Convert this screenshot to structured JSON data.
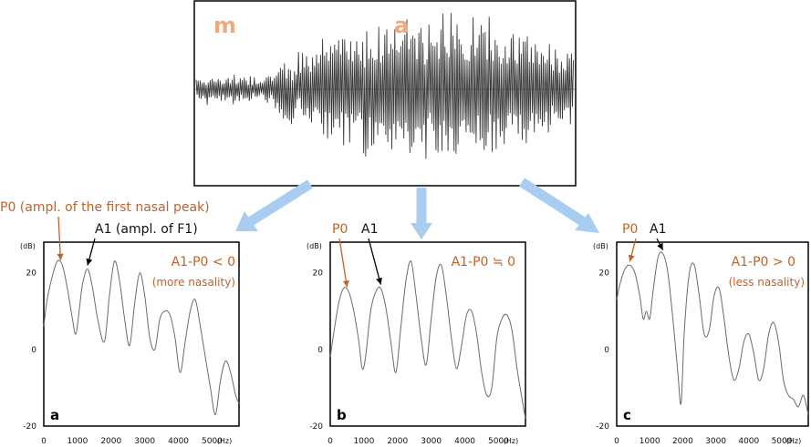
{
  "colors": {
    "accent": "#c0622b",
    "arrow_blue": "#a9cdf0",
    "trace": "#6b6b6b",
    "wave": "#3a3a3a"
  },
  "waveform": {
    "labels": [
      "m",
      "a"
    ]
  },
  "chart_data": [
    {
      "type": "line",
      "panel_label": "a",
      "ylabel": "(dB)",
      "xlabel": "(Hz)",
      "xlim": [
        0,
        5800
      ],
      "ylim": [
        -20,
        28
      ],
      "x_ticks": [
        0,
        1000,
        2000,
        3000,
        4000,
        5000
      ],
      "y_ticks": [
        20,
        0,
        -20
      ],
      "annotations": {
        "p0": "P0 (ampl. of the first nasal peak)",
        "a1": "A1 (ampl. of F1)",
        "relation": "A1-P0 < 0",
        "note": "(more nasality)"
      },
      "series": [
        {
          "x": [
            0,
            100,
            250,
            400,
            550,
            700,
            850,
            950,
            1050,
            1150,
            1300,
            1450,
            1600,
            1800,
            1950,
            2100,
            2250,
            2400,
            2550,
            2700,
            2850,
            3000,
            3150,
            3300,
            3450,
            3600,
            3750,
            3900,
            4050,
            4200,
            4350,
            4500,
            4650,
            4800,
            4950,
            5100,
            5250,
            5400,
            5550,
            5700,
            5800
          ],
          "y": [
            6,
            13,
            19,
            23,
            22,
            16,
            8,
            4,
            10,
            17,
            21,
            16,
            8,
            2,
            14,
            23,
            18,
            8,
            1,
            12,
            20,
            14,
            3,
            0,
            8,
            10,
            9,
            3,
            -6,
            2,
            10,
            13,
            6,
            -2,
            -10,
            -17,
            -8,
            -3,
            -6,
            -12,
            -14
          ]
        }
      ]
    },
    {
      "type": "line",
      "panel_label": "b",
      "ylabel": "(dB)",
      "xlabel": "(Hz)",
      "xlim": [
        0,
        5800
      ],
      "ylim": [
        -20,
        28
      ],
      "x_ticks": [
        0,
        1000,
        2000,
        3000,
        4000,
        5000
      ],
      "y_ticks": [
        20,
        0,
        -20
      ],
      "annotations": {
        "p0": "P0",
        "a1": "A1",
        "relation": "A1-P0 ≒ 0",
        "note": ""
      },
      "series": [
        {
          "x": [
            0,
            100,
            250,
            400,
            550,
            700,
            850,
            950,
            1050,
            1200,
            1350,
            1500,
            1650,
            1800,
            1950,
            2100,
            2250,
            2400,
            2550,
            2700,
            2850,
            3000,
            3150,
            3300,
            3450,
            3600,
            3750,
            3900,
            4050,
            4200,
            4350,
            4500,
            4650,
            4800,
            4950,
            5100,
            5250,
            5400,
            5550,
            5700,
            5800
          ],
          "y": [
            -2,
            4,
            12,
            16,
            15,
            10,
            2,
            -5,
            -2,
            10,
            15,
            16,
            11,
            2,
            -6,
            6,
            18,
            23,
            14,
            3,
            -4,
            8,
            19,
            22,
            14,
            3,
            -5,
            1,
            9,
            10,
            4,
            -6,
            -12,
            -10,
            3,
            8,
            9,
            5,
            -5,
            -13,
            -18
          ]
        }
      ]
    },
    {
      "type": "line",
      "panel_label": "c",
      "ylabel": "(dB)",
      "xlabel": "(Hz)",
      "xlim": [
        0,
        5800
      ],
      "ylim": [
        -20,
        28
      ],
      "x_ticks": [
        0,
        1000,
        2000,
        3000,
        4000,
        5000
      ],
      "y_ticks": [
        20,
        0,
        -20
      ],
      "annotations": {
        "p0": "P0",
        "a1": "A1",
        "relation": "A1-P0 > 0",
        "note": "(less nasality)"
      },
      "series": [
        {
          "x": [
            0,
            100,
            250,
            400,
            550,
            700,
            800,
            900,
            1000,
            1100,
            1250,
            1400,
            1550,
            1700,
            1850,
            1950,
            2050,
            2200,
            2350,
            2500,
            2650,
            2800,
            2950,
            3100,
            3250,
            3400,
            3550,
            3700,
            3850,
            4000,
            4150,
            4300,
            4450,
            4600,
            4750,
            4900,
            5050,
            5200,
            5350,
            5500,
            5650,
            5800
          ],
          "y": [
            13,
            17,
            21,
            22,
            20,
            14,
            8,
            10,
            8,
            15,
            24,
            25,
            20,
            8,
            -6,
            -14,
            5,
            20,
            22,
            14,
            4,
            5,
            14,
            16,
            8,
            -2,
            -8,
            -5,
            2,
            4,
            -1,
            -8,
            -5,
            4,
            7,
            2,
            -8,
            -12,
            -13,
            -15,
            -12,
            -17
          ]
        }
      ]
    }
  ]
}
